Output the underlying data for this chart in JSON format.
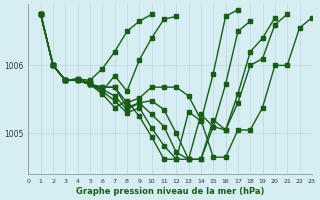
{
  "xlabel": "Graphe pression niveau de la mer (hPa)",
  "bg_color": "#d6eef2",
  "grid_color": "#b8d8e0",
  "line_color": "#1a5c1a",
  "line_color2": "#2d7a2d",
  "xmin": 0,
  "xmax": 23,
  "ymin": 1004.4,
  "ymax": 1006.9,
  "yticks": [
    1005,
    1006
  ],
  "series": [
    [
      1006.75,
      1006.0,
      1005.78,
      1005.78,
      1005.72,
      1005.68,
      1005.68,
      1005.45,
      1005.52,
      1005.68,
      1005.68,
      1005.68,
      1005.55,
      1005.2,
      1004.65,
      1004.65,
      1005.05,
      1005.05,
      1005.38,
      1006.0,
      1006.0,
      1006.55,
      1006.7
    ],
    [
      1006.75,
      1006.0,
      1005.78,
      1005.78,
      1005.72,
      1005.68,
      1005.68,
      1005.38,
      1005.45,
      1005.48,
      1005.35,
      1005.0,
      1004.62,
      1004.62,
      1005.1,
      1005.05,
      1005.45,
      1006.0,
      1006.1,
      1006.6,
      1006.75
    ],
    [
      1006.75,
      1006.0,
      1005.78,
      1005.78,
      1005.72,
      1005.65,
      1005.55,
      1005.35,
      1005.45,
      1005.28,
      1005.1,
      1004.72,
      1004.62,
      1004.62,
      1005.2,
      1005.05,
      1005.58,
      1006.2,
      1006.4,
      1006.7
    ],
    [
      1006.75,
      1006.0,
      1005.78,
      1005.78,
      1005.72,
      1005.62,
      1005.48,
      1005.3,
      1005.38,
      1005.08,
      1004.82,
      1004.62,
      1004.62,
      1005.28,
      1005.1,
      1005.72,
      1006.5,
      1006.65
    ],
    [
      1006.75,
      1006.0,
      1005.78,
      1005.8,
      1005.72,
      1005.58,
      1005.38,
      1005.48,
      1005.25,
      1004.95,
      1004.62,
      1004.62,
      1005.32,
      1005.18,
      1005.88,
      1006.72,
      1006.82
    ],
    [
      1006.75,
      1006.0,
      1005.78,
      1005.8,
      1005.75,
      1005.62,
      1005.85,
      1005.62,
      1006.08,
      1006.4,
      1006.68,
      1006.72
    ],
    [
      1006.75,
      1006.0,
      1005.78,
      1005.8,
      1005.78,
      1005.95,
      1006.2,
      1006.5,
      1006.65,
      1006.75
    ]
  ],
  "series_x_starts": [
    1,
    1,
    1,
    1,
    1,
    1,
    1
  ],
  "marker_size": 2.5,
  "linewidth": 1.0
}
